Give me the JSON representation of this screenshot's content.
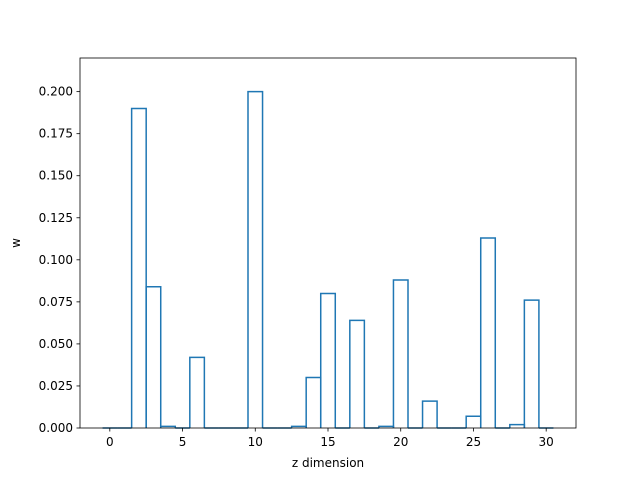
{
  "chart_data": {
    "type": "bar",
    "style": "step-outline",
    "x_values": [
      0,
      1,
      2,
      3,
      4,
      5,
      6,
      7,
      8,
      9,
      10,
      11,
      12,
      13,
      14,
      15,
      16,
      17,
      18,
      19,
      20,
      21,
      22,
      23,
      24,
      25,
      26,
      27,
      28,
      29,
      30
    ],
    "values": [
      0.0,
      0.0,
      0.19,
      0.084,
      0.001,
      0.0,
      0.042,
      0.0,
      0.0,
      0.0,
      0.2,
      0.0,
      0.0,
      0.001,
      0.03,
      0.08,
      0.0,
      0.064,
      0.0,
      0.001,
      0.088,
      0.0,
      0.016,
      0.0,
      0.0,
      0.007,
      0.113,
      0.0,
      0.002,
      0.076,
      0.0
    ],
    "xlabel": "z dimension",
    "ylabel": "w",
    "xlim": [
      -2.05,
      32.05
    ],
    "ylim": [
      0,
      0.22
    ],
    "xticks": [
      0,
      5,
      10,
      15,
      20,
      25,
      30
    ],
    "xtick_labels": [
      "0",
      "5",
      "10",
      "15",
      "20",
      "25",
      "30"
    ],
    "yticks": [
      0,
      0.025,
      0.05,
      0.075,
      0.1,
      0.125,
      0.15,
      0.175,
      0.2
    ],
    "ytick_labels": [
      "0.000",
      "0.025",
      "0.050",
      "0.075",
      "0.100",
      "0.125",
      "0.150",
      "0.175",
      "0.200"
    ],
    "grid": false,
    "line_color": "#1f77b4"
  }
}
